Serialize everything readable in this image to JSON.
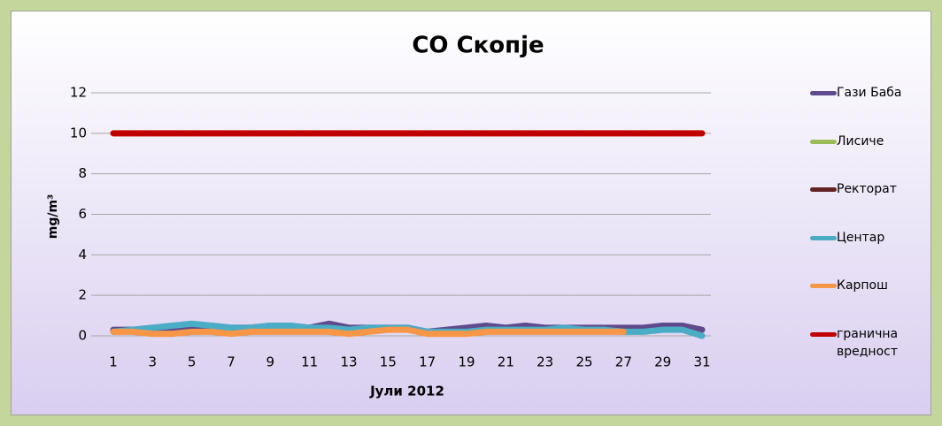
{
  "chart_data": {
    "type": "line",
    "title": "CO Скопје",
    "x_label": "Јули 2012",
    "y_label": "mg/m³",
    "x": [
      1,
      2,
      3,
      4,
      5,
      6,
      7,
      8,
      9,
      10,
      11,
      12,
      13,
      14,
      15,
      16,
      17,
      18,
      19,
      20,
      21,
      22,
      23,
      24,
      25,
      26,
      27,
      28,
      29,
      30,
      31
    ],
    "xlim": [
      1,
      31
    ],
    "xticks": [
      1,
      3,
      5,
      7,
      9,
      11,
      13,
      15,
      17,
      19,
      21,
      23,
      25,
      27,
      29,
      31
    ],
    "ylim": [
      0,
      12
    ],
    "yticks": [
      0,
      2,
      4,
      6,
      8,
      10,
      12
    ],
    "grid": true,
    "legend": "right",
    "series": [
      {
        "name": "Гази Баба",
        "color": "#5f4b8b",
        "values": [
          0.3,
          0.3,
          0.4,
          0.4,
          0.5,
          0.5,
          0.4,
          0.4,
          0.5,
          0.5,
          0.4,
          0.6,
          0.4,
          0.4,
          0.4,
          0.4,
          0.2,
          0.3,
          0.4,
          0.5,
          0.4,
          0.5,
          0.4,
          0.4,
          0.4,
          0.4,
          0.4,
          0.4,
          0.5,
          0.5,
          0.3
        ]
      },
      {
        "name": "Лисиче",
        "color": "#9bbb59",
        "values": [
          null,
          null,
          null,
          null,
          null,
          null,
          null,
          null,
          null,
          null,
          null,
          null,
          null,
          null,
          null,
          null,
          null,
          null,
          null,
          null,
          null,
          null,
          null,
          null,
          null,
          null,
          null,
          null,
          null,
          null,
          null
        ]
      },
      {
        "name": "Ректорат",
        "color": "#632523",
        "values": [
          null,
          null,
          null,
          null,
          null,
          null,
          null,
          null,
          null,
          null,
          null,
          null,
          null,
          null,
          null,
          null,
          null,
          null,
          null,
          null,
          null,
          null,
          null,
          null,
          null,
          null,
          null,
          null,
          null,
          null,
          null
        ]
      },
      {
        "name": "Центар",
        "color": "#4bacc6",
        "values": [
          0.2,
          0.3,
          0.4,
          0.5,
          0.6,
          0.5,
          0.4,
          0.4,
          0.5,
          0.5,
          0.4,
          0.4,
          0.3,
          0.4,
          0.4,
          0.4,
          0.2,
          0.2,
          0.2,
          0.3,
          0.3,
          0.3,
          0.3,
          0.4,
          0.3,
          0.3,
          0.2,
          0.2,
          0.3,
          0.3,
          0.0
        ]
      },
      {
        "name": "Карпош",
        "color": "#f79646",
        "values": [
          0.2,
          0.2,
          0.1,
          0.1,
          0.2,
          0.2,
          0.1,
          0.2,
          0.2,
          0.2,
          0.2,
          0.2,
          0.1,
          0.2,
          0.3,
          0.3,
          0.1,
          0.1,
          0.1,
          0.2,
          0.2,
          0.2,
          0.2,
          0.2,
          0.2,
          0.2,
          0.2,
          null,
          null,
          null,
          null
        ]
      },
      {
        "name": "гранична вредност",
        "color": "#c00000",
        "values": [
          10,
          10,
          10,
          10,
          10,
          10,
          10,
          10,
          10,
          10,
          10,
          10,
          10,
          10,
          10,
          10,
          10,
          10,
          10,
          10,
          10,
          10,
          10,
          10,
          10,
          10,
          10,
          10,
          10,
          10,
          10
        ]
      }
    ]
  }
}
